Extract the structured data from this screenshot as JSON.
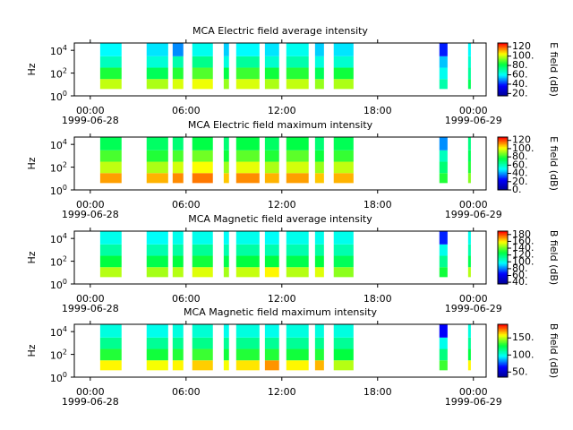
{
  "chart_data": [
    {
      "type": "heatmap",
      "title": "MCA  Electric field average intensity",
      "ylabel": "Hz",
      "clabel": "E field (dB)",
      "xlim": [
        -1,
        24.8
      ],
      "xticks": [
        {
          "value": 0,
          "label": "00:00"
        },
        {
          "value": 6,
          "label": "06:00"
        },
        {
          "value": 12,
          "label": "12:00"
        },
        {
          "value": 18,
          "label": "18:00"
        },
        {
          "value": 24,
          "label": "00:00"
        }
      ],
      "xtick_dates": [
        {
          "value": 0,
          "label": "1999-06-28"
        },
        {
          "value": 24,
          "label": "1999-06-29"
        }
      ],
      "ylim": [
        1,
        44000
      ],
      "log_y": true,
      "yticks": [
        {
          "value": 1,
          "label": "10",
          "exponent": "0"
        },
        {
          "value": 100,
          "label": "10",
          "exponent": "2"
        },
        {
          "value": 10000,
          "label": "10",
          "exponent": "4"
        }
      ],
      "bands": [
        4,
        30,
        300,
        3000,
        44000
      ],
      "clim": [
        15,
        128
      ],
      "cticks": [
        {
          "value": 20,
          "label": "20."
        },
        {
          "value": 40,
          "label": "40."
        },
        {
          "value": 60,
          "label": "60."
        },
        {
          "value": 80,
          "label": "80."
        },
        {
          "value": 100,
          "label": "100."
        },
        {
          "value": 120,
          "label": "120"
        }
      ],
      "colormap": [
        "#00008f",
        "#0000ff",
        "#00ffff",
        "#00ff40",
        "#ffff00",
        "#ff0000"
      ],
      "segments": [
        {
          "start": 0.62,
          "end": 1.96,
          "values": [
            100,
            85,
            68,
            60
          ]
        },
        {
          "start": 3.53,
          "end": 4.88,
          "values": [
            98,
            80,
            65,
            58
          ]
        },
        {
          "start": 5.16,
          "end": 5.83,
          "values": [
            102,
            86,
            70,
            50
          ]
        },
        {
          "start": 6.39,
          "end": 7.68,
          "values": [
            104,
            90,
            74,
            62
          ]
        },
        {
          "start": 8.36,
          "end": 8.69,
          "values": [
            96,
            82,
            64,
            56
          ]
        },
        {
          "start": 9.14,
          "end": 10.6,
          "values": [
            102,
            88,
            72,
            60
          ]
        },
        {
          "start": 10.94,
          "end": 11.83,
          "values": [
            98,
            84,
            66,
            58
          ]
        },
        {
          "start": 12.28,
          "end": 13.68,
          "values": [
            100,
            86,
            70,
            62
          ]
        },
        {
          "start": 14.08,
          "end": 14.64,
          "values": [
            96,
            80,
            64,
            56
          ]
        },
        {
          "start": 15.25,
          "end": 16.49,
          "values": [
            98,
            84,
            66,
            58
          ]
        },
        {
          "start": 21.87,
          "end": 22.38,
          "values": [
            70,
            62,
            55,
            40
          ]
        },
        {
          "start": 23.67,
          "end": 23.84,
          "values": [
            80,
            72,
            66,
            60
          ]
        }
      ]
    },
    {
      "type": "heatmap",
      "title": "MCA  Electric field maximum intensity",
      "ylabel": "Hz",
      "clabel": "E field (dB)",
      "xlim": [
        -1,
        24.8
      ],
      "xticks": [
        {
          "value": 0,
          "label": "00:00"
        },
        {
          "value": 6,
          "label": "06:00"
        },
        {
          "value": 12,
          "label": "12:00"
        },
        {
          "value": 18,
          "label": "18:00"
        },
        {
          "value": 24,
          "label": "00:00"
        }
      ],
      "xtick_dates": [
        {
          "value": 0,
          "label": "1999-06-28"
        },
        {
          "value": 24,
          "label": "1999-06-29"
        }
      ],
      "ylim": [
        1,
        44000
      ],
      "log_y": true,
      "yticks": [
        {
          "value": 1,
          "label": "10",
          "exponent": "0"
        },
        {
          "value": 100,
          "label": "10",
          "exponent": "2"
        },
        {
          "value": 10000,
          "label": "10",
          "exponent": "4"
        }
      ],
      "bands": [
        4,
        30,
        300,
        3000,
        44000
      ],
      "clim": [
        0,
        128
      ],
      "cticks": [
        {
          "value": 0,
          "label": "0."
        },
        {
          "value": 20,
          "label": "20."
        },
        {
          "value": 40,
          "label": "40."
        },
        {
          "value": 60,
          "label": "60."
        },
        {
          "value": 80,
          "label": "80."
        },
        {
          "value": 100,
          "label": "100."
        },
        {
          "value": 120,
          "label": "120"
        }
      ],
      "colormap": [
        "#00008f",
        "#0000ff",
        "#00ffff",
        "#00ff40",
        "#ffff00",
        "#ff0000"
      ],
      "segments": [
        {
          "start": 0.62,
          "end": 1.96,
          "values": [
            112,
            96,
            84,
            74
          ]
        },
        {
          "start": 3.53,
          "end": 4.88,
          "values": [
            110,
            94,
            80,
            72
          ]
        },
        {
          "start": 5.16,
          "end": 5.83,
          "values": [
            114,
            98,
            84,
            70
          ]
        },
        {
          "start": 6.39,
          "end": 7.68,
          "values": [
            116,
            102,
            88,
            76
          ]
        },
        {
          "start": 8.36,
          "end": 8.69,
          "values": [
            108,
            92,
            78,
            70
          ]
        },
        {
          "start": 9.14,
          "end": 10.6,
          "values": [
            114,
            100,
            86,
            76
          ]
        },
        {
          "start": 10.94,
          "end": 11.83,
          "values": [
            110,
            94,
            80,
            72
          ]
        },
        {
          "start": 12.28,
          "end": 13.68,
          "values": [
            112,
            98,
            86,
            76
          ]
        },
        {
          "start": 14.08,
          "end": 14.64,
          "values": [
            108,
            92,
            78,
            70
          ]
        },
        {
          "start": 15.25,
          "end": 16.49,
          "values": [
            110,
            96,
            82,
            74
          ]
        },
        {
          "start": 21.87,
          "end": 22.38,
          "values": [
            80,
            70,
            60,
            40
          ]
        },
        {
          "start": 23.67,
          "end": 23.84,
          "values": [
            90,
            80,
            74,
            68
          ]
        }
      ]
    },
    {
      "type": "heatmap",
      "title": "MCA  Magnetic field average intensity",
      "ylabel": "Hz",
      "clabel": "B field (dB)",
      "xlim": [
        -1,
        24.8
      ],
      "xticks": [
        {
          "value": 0,
          "label": "00:00"
        },
        {
          "value": 6,
          "label": "06:00"
        },
        {
          "value": 12,
          "label": "12:00"
        },
        {
          "value": 18,
          "label": "18:00"
        },
        {
          "value": 24,
          "label": "00:00"
        }
      ],
      "xtick_dates": [
        {
          "value": 0,
          "label": "1999-06-28"
        },
        {
          "value": 24,
          "label": "1999-06-29"
        }
      ],
      "ylim": [
        1,
        44000
      ],
      "log_y": true,
      "yticks": [
        {
          "value": 1,
          "label": "10",
          "exponent": "0"
        },
        {
          "value": 100,
          "label": "10",
          "exponent": "2"
        },
        {
          "value": 10000,
          "label": "10",
          "exponent": "4"
        }
      ],
      "bands": [
        4,
        30,
        300,
        3000,
        44000
      ],
      "clim": [
        35,
        190
      ],
      "cticks": [
        {
          "value": 40,
          "label": "40."
        },
        {
          "value": 60,
          "label": "60."
        },
        {
          "value": 80,
          "label": "80."
        },
        {
          "value": 100,
          "label": "100."
        },
        {
          "value": 120,
          "label": "120."
        },
        {
          "value": 140,
          "label": "140."
        },
        {
          "value": 160,
          "label": "160."
        },
        {
          "value": 180,
          "label": "180"
        }
      ],
      "colormap": [
        "#00008f",
        "#0000ff",
        "#00ffff",
        "#00ff40",
        "#ffff00",
        "#ff0000"
      ],
      "segments": [
        {
          "start": 0.62,
          "end": 1.96,
          "values": [
            150,
            128,
            112,
            100
          ]
        },
        {
          "start": 3.53,
          "end": 4.88,
          "values": [
            148,
            126,
            110,
            98
          ]
        },
        {
          "start": 5.16,
          "end": 5.83,
          "values": [
            150,
            128,
            112,
            100
          ]
        },
        {
          "start": 6.39,
          "end": 7.68,
          "values": [
            155,
            130,
            114,
            100
          ]
        },
        {
          "start": 8.36,
          "end": 8.69,
          "values": [
            148,
            126,
            110,
            98
          ]
        },
        {
          "start": 9.14,
          "end": 10.6,
          "values": [
            152,
            128,
            112,
            100
          ]
        },
        {
          "start": 10.94,
          "end": 11.83,
          "values": [
            160,
            128,
            110,
            98
          ]
        },
        {
          "start": 12.28,
          "end": 13.68,
          "values": [
            150,
            126,
            110,
            100
          ]
        },
        {
          "start": 14.08,
          "end": 14.64,
          "values": [
            155,
            128,
            112,
            100
          ]
        },
        {
          "start": 15.25,
          "end": 16.49,
          "values": [
            145,
            124,
            110,
            100
          ]
        },
        {
          "start": 21.87,
          "end": 22.38,
          "values": [
            130,
            115,
            100,
            70
          ]
        },
        {
          "start": 23.67,
          "end": 23.84,
          "values": [
            150,
            125,
            110,
            100
          ]
        }
      ]
    },
    {
      "type": "heatmap",
      "title": "MCA  Magnetic field maximum intensity",
      "ylabel": "Hz",
      "clabel": "B field (dB)",
      "xlim": [
        -1,
        24.8
      ],
      "xticks": [
        {
          "value": 0,
          "label": "00:00"
        },
        {
          "value": 6,
          "label": "06:00"
        },
        {
          "value": 12,
          "label": "12:00"
        },
        {
          "value": 18,
          "label": "18:00"
        },
        {
          "value": 24,
          "label": "00:00"
        }
      ],
      "xtick_dates": [
        {
          "value": 0,
          "label": "1999-06-28"
        },
        {
          "value": 24,
          "label": "1999-06-29"
        }
      ],
      "ylim": [
        1,
        44000
      ],
      "log_y": true,
      "yticks": [
        {
          "value": 1,
          "label": "10",
          "exponent": "0"
        },
        {
          "value": 100,
          "label": "10",
          "exponent": "2"
        },
        {
          "value": 10000,
          "label": "10",
          "exponent": "4"
        }
      ],
      "bands": [
        4,
        30,
        300,
        3000,
        44000
      ],
      "clim": [
        35,
        190
      ],
      "cticks": [
        {
          "value": 50,
          "label": "50."
        },
        {
          "value": 100,
          "label": "100."
        },
        {
          "value": 150,
          "label": "150."
        }
      ],
      "colormap": [
        "#00008f",
        "#0000ff",
        "#00ffff",
        "#00ff40",
        "#ffff00",
        "#ff0000"
      ],
      "segments": [
        {
          "start": 0.62,
          "end": 1.96,
          "values": [
            160,
            132,
            115,
            102
          ]
        },
        {
          "start": 3.53,
          "end": 4.88,
          "values": [
            158,
            130,
            114,
            100
          ]
        },
        {
          "start": 5.16,
          "end": 5.83,
          "values": [
            160,
            132,
            115,
            102
          ]
        },
        {
          "start": 6.39,
          "end": 7.68,
          "values": [
            165,
            135,
            116,
            104
          ]
        },
        {
          "start": 8.36,
          "end": 8.69,
          "values": [
            158,
            130,
            114,
            100
          ]
        },
        {
          "start": 9.14,
          "end": 10.6,
          "values": [
            162,
            132,
            115,
            102
          ]
        },
        {
          "start": 10.94,
          "end": 11.83,
          "values": [
            172,
            132,
            114,
            100
          ]
        },
        {
          "start": 12.28,
          "end": 13.68,
          "values": [
            160,
            130,
            114,
            102
          ]
        },
        {
          "start": 14.08,
          "end": 14.64,
          "values": [
            168,
            132,
            115,
            102
          ]
        },
        {
          "start": 15.25,
          "end": 16.49,
          "values": [
            150,
            128,
            114,
            102
          ]
        },
        {
          "start": 21.87,
          "end": 22.38,
          "values": [
            135,
            118,
            100,
            65
          ]
        },
        {
          "start": 23.67,
          "end": 23.84,
          "values": [
            160,
            128,
            114,
            102
          ]
        }
      ]
    }
  ]
}
